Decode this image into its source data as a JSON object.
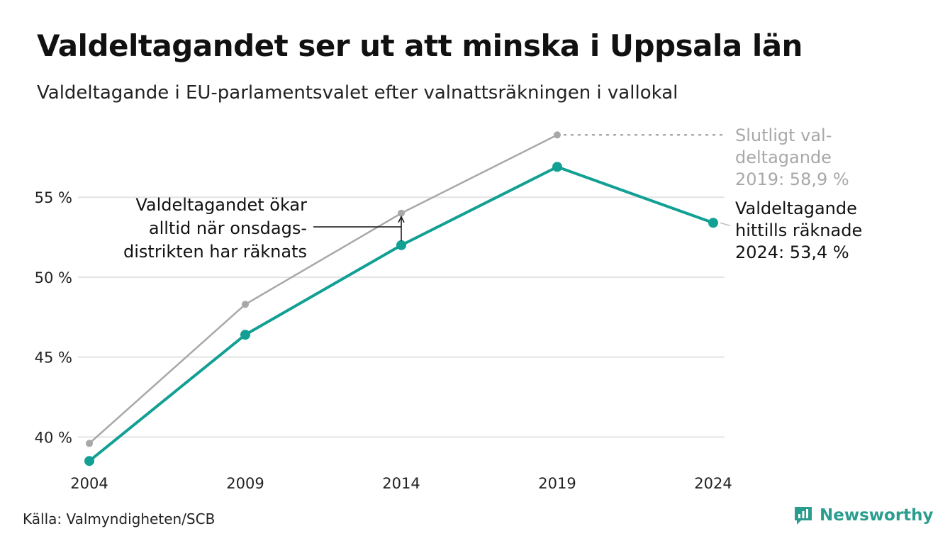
{
  "header": {
    "title": "Valdeltagandet ser ut att minska i Uppsala län",
    "subtitle": "Valdeltagande i EU-parlamentsvalet efter valnattsräkningen i vallokal"
  },
  "footer": {
    "source": "Källa: Valmyndigheten/SCB",
    "brand": "Newsworthy"
  },
  "colors": {
    "counted": "#12a094",
    "final": "#a8a8a8",
    "grid": "#e4e4e4",
    "brand": "#2a9d8f"
  },
  "chart_data": {
    "type": "line",
    "x": [
      2004,
      2009,
      2014,
      2019,
      2024
    ],
    "x_tick_labels": [
      "2004",
      "2009",
      "2014",
      "2019",
      "2024"
    ],
    "y_ticks": [
      40,
      45,
      50,
      55
    ],
    "y_tick_labels": [
      "40 %",
      "45 %",
      "50 %",
      "55 %"
    ],
    "ylim": [
      38.2,
      59.8
    ],
    "xlim": [
      2004,
      2024
    ],
    "grid": true,
    "series": [
      {
        "key": "final",
        "values": [
          39.6,
          48.3,
          54.0,
          58.9,
          null
        ]
      },
      {
        "key": "counted",
        "values": [
          38.5,
          46.4,
          52.0,
          56.9,
          53.4
        ]
      }
    ],
    "annotations": {
      "final_label": [
        "Slutligt val-",
        "deltagande",
        "2019: 58,9 %"
      ],
      "counted_label": [
        "Valdeltagande",
        "hittills räknade",
        "2024: 53,4 %"
      ],
      "note": [
        "Valdeltagandet ökar",
        "alltid när onsdags-",
        "distrikten har räknats"
      ]
    }
  }
}
